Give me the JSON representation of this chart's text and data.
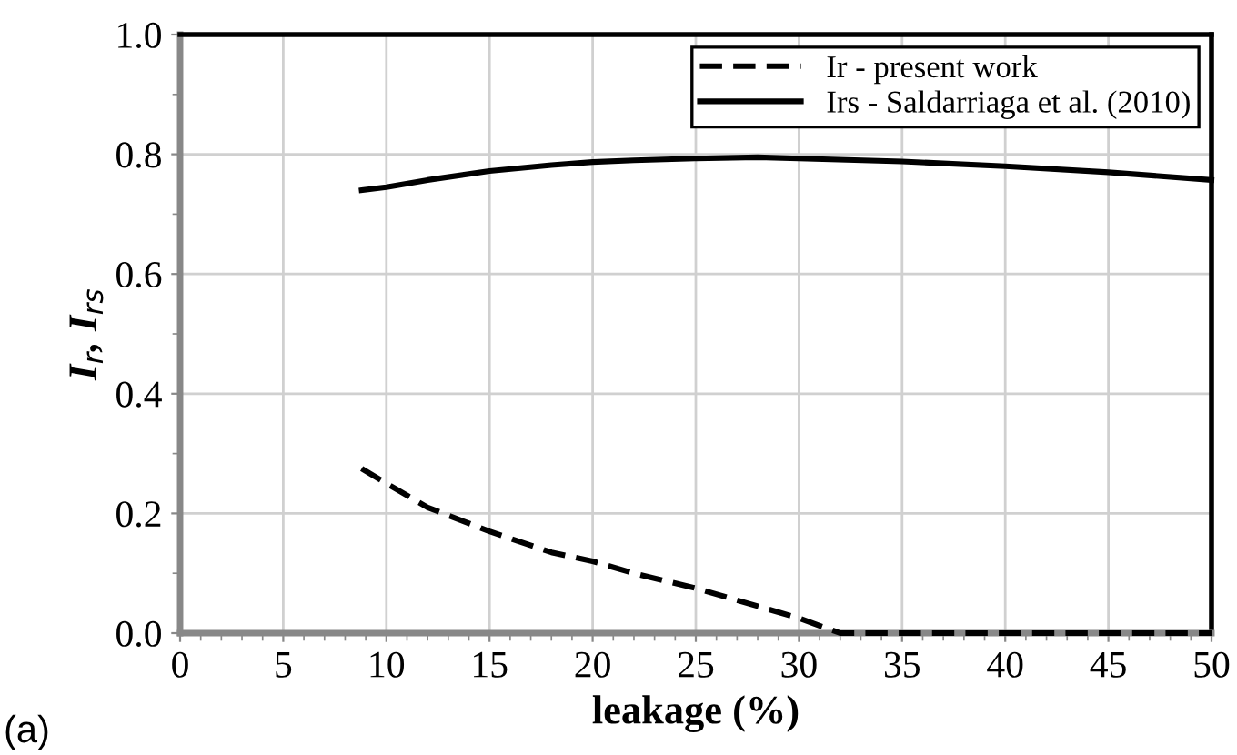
{
  "chart_data": {
    "type": "line",
    "xlabel": "leakage (%)",
    "ylabel": "I$_{r}$, I$_{rs}$",
    "annotations": [
      "(a)"
    ],
    "xlim": [
      0,
      50
    ],
    "ylim": [
      0,
      1.0
    ],
    "xticks": [
      0,
      5,
      10,
      15,
      20,
      25,
      30,
      35,
      40,
      45,
      50
    ],
    "yticks": [
      {
        "value": 0,
        "label": "0.0"
      },
      {
        "value": 0.2,
        "label": "0.2"
      },
      {
        "value": 0.4,
        "label": "0.4"
      },
      {
        "value": 0.6,
        "label": "0.6"
      },
      {
        "value": 0.8,
        "label": "0.8"
      },
      {
        "value": 1.0,
        "label": "1.0"
      }
    ],
    "grid": true,
    "legend": "top right",
    "marker": "none",
    "series": [
      {
        "name": "Ir - present work",
        "color": "#000000",
        "line_style": "dashed",
        "x": [
          8.8,
          10,
          12,
          15,
          18,
          20,
          22,
          25,
          28,
          30,
          32,
          35,
          40,
          45,
          50
        ],
        "values": [
          0.275,
          0.25,
          0.21,
          0.17,
          0.135,
          0.12,
          0.1,
          0.075,
          0.045,
          0.025,
          0,
          0,
          0,
          0,
          0
        ]
      },
      {
        "name": "Irs - Saldarriaga et al. (2010)",
        "color": "#000000",
        "line_style": "solid",
        "x": [
          8.8,
          10,
          12,
          15,
          18,
          20,
          22,
          25,
          28,
          30,
          35,
          40,
          45,
          50
        ],
        "values": [
          0.74,
          0.745,
          0.757,
          0.772,
          0.782,
          0.787,
          0.79,
          0.793,
          0.795,
          0.793,
          0.788,
          0.78,
          0.77,
          0.757
        ]
      }
    ]
  }
}
